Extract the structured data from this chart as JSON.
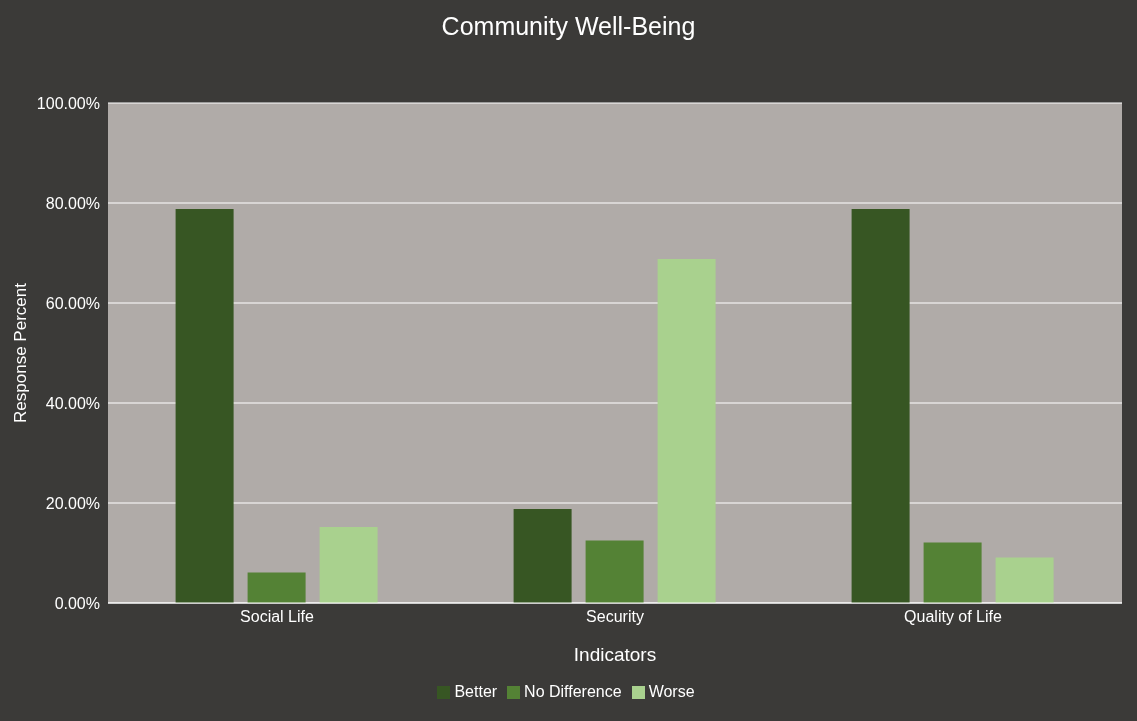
{
  "chart_data": {
    "type": "bar",
    "title": "Community Well-Being",
    "xlabel": "Indicators",
    "ylabel": "Response Percent",
    "categories": [
      "Social Life",
      "Security",
      "Quality of Life"
    ],
    "series": [
      {
        "name": "Better",
        "color": "#375623",
        "values": [
          78.8,
          18.8,
          78.8
        ]
      },
      {
        "name": "No Difference",
        "color": "#548235",
        "values": [
          6.1,
          12.5,
          12.1
        ]
      },
      {
        "name": "Worse",
        "color": "#a9d18e",
        "values": [
          15.2,
          68.8,
          9.1
        ]
      }
    ],
    "ylim": [
      0,
      100
    ],
    "yticks": [
      {
        "value": 0,
        "label": "0.00%"
      },
      {
        "value": 20,
        "label": "20.00%"
      },
      {
        "value": 40,
        "label": "40.00%"
      },
      {
        "value": 60,
        "label": "60.00%"
      },
      {
        "value": 80,
        "label": "80.00%"
      },
      {
        "value": 100,
        "label": "100.00%"
      }
    ],
    "grid": "y",
    "legend": "bottom"
  }
}
